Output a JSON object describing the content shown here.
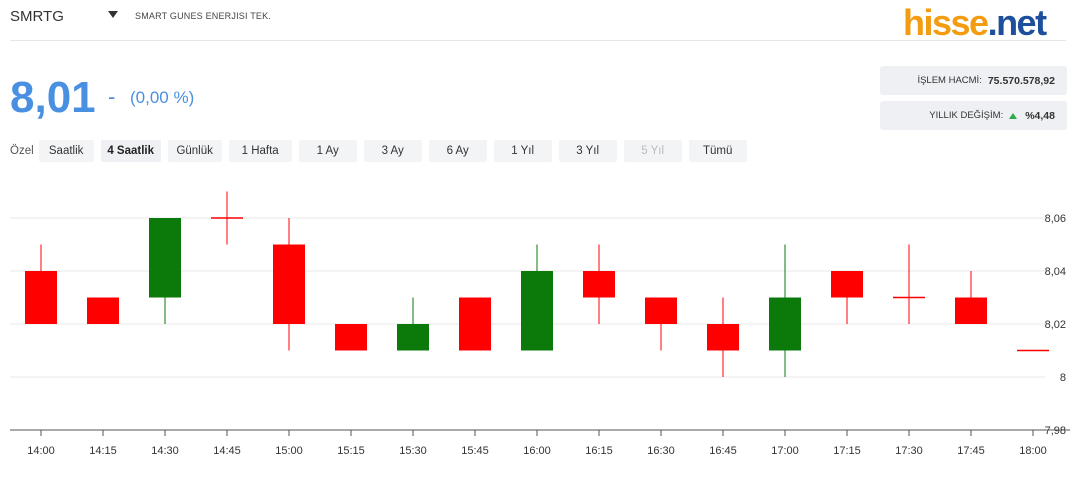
{
  "header": {
    "symbol": "SMRTG",
    "company": "SMART GUNES ENERJISI TEK.",
    "logo_part1": "hisse",
    "logo_part2": ".net"
  },
  "quote": {
    "price": "8,01",
    "change_dash": "-",
    "change_pct": "(0,00 %)"
  },
  "stats": {
    "volume_label": "İŞLEM HACMİ:",
    "volume_value": "75.570.578,92",
    "yearly_label": "YILLIK DEĞİŞİM:",
    "yearly_value": "%4,48",
    "up_color": "#2eaa4a"
  },
  "periods": {
    "label": "Özel",
    "tabs": [
      {
        "label": "Saatlik",
        "state": "normal"
      },
      {
        "label": "4 Saatlik",
        "state": "active"
      },
      {
        "label": "Günlük",
        "state": "normal"
      },
      {
        "label": "1 Hafta",
        "state": "normal"
      },
      {
        "label": "1 Ay",
        "state": "normal"
      },
      {
        "label": "3 Ay",
        "state": "normal"
      },
      {
        "label": "6 Ay",
        "state": "normal"
      },
      {
        "label": "1 Yıl",
        "state": "normal"
      },
      {
        "label": "3 Yıl",
        "state": "normal"
      },
      {
        "label": "5 Yıl",
        "state": "disabled"
      },
      {
        "label": "Tümü",
        "state": "normal"
      }
    ]
  },
  "chart_data": {
    "type": "candlestick",
    "up_color": "#0b7a0b",
    "down_color": "#ff0000",
    "grid": "horizontal",
    "ylim": [
      7.98,
      8.07
    ],
    "y_ticks": [
      {
        "value": 8.06,
        "label": "8,06"
      },
      {
        "value": 8.04,
        "label": "8,04"
      },
      {
        "value": 8.02,
        "label": "8,02"
      },
      {
        "value": 8.0,
        "label": "8"
      },
      {
        "value": 7.98,
        "label": "7,98"
      }
    ],
    "x": [
      "14:00",
      "14:15",
      "14:30",
      "14:45",
      "15:00",
      "15:15",
      "15:30",
      "15:45",
      "16:00",
      "16:15",
      "16:30",
      "16:45",
      "17:00",
      "17:15",
      "17:30",
      "17:45",
      "18:00"
    ],
    "candles": [
      {
        "open": 8.04,
        "high": 8.05,
        "low": 8.02,
        "close": 8.02
      },
      {
        "open": 8.03,
        "high": 8.03,
        "low": 8.02,
        "close": 8.02
      },
      {
        "open": 8.03,
        "high": 8.06,
        "low": 8.02,
        "close": 8.06
      },
      {
        "open": 8.06,
        "high": 8.07,
        "low": 8.05,
        "close": 8.06
      },
      {
        "open": 8.05,
        "high": 8.06,
        "low": 8.01,
        "close": 8.02
      },
      {
        "open": 8.02,
        "high": 8.02,
        "low": 8.01,
        "close": 8.01
      },
      {
        "open": 8.01,
        "high": 8.03,
        "low": 8.01,
        "close": 8.02
      },
      {
        "open": 8.03,
        "high": 8.03,
        "low": 8.01,
        "close": 8.01
      },
      {
        "open": 8.01,
        "high": 8.05,
        "low": 8.01,
        "close": 8.04
      },
      {
        "open": 8.04,
        "high": 8.05,
        "low": 8.02,
        "close": 8.03
      },
      {
        "open": 8.03,
        "high": 8.03,
        "low": 8.01,
        "close": 8.02
      },
      {
        "open": 8.02,
        "high": 8.03,
        "low": 8.0,
        "close": 8.01
      },
      {
        "open": 8.01,
        "high": 8.05,
        "low": 8.0,
        "close": 8.03
      },
      {
        "open": 8.04,
        "high": 8.04,
        "low": 8.02,
        "close": 8.03
      },
      {
        "open": 8.03,
        "high": 8.05,
        "low": 8.02,
        "close": 8.03
      },
      {
        "open": 8.03,
        "high": 8.04,
        "low": 8.02,
        "close": 8.02
      },
      {
        "open": 8.01,
        "high": 8.01,
        "low": 8.01,
        "close": 8.01
      }
    ]
  }
}
